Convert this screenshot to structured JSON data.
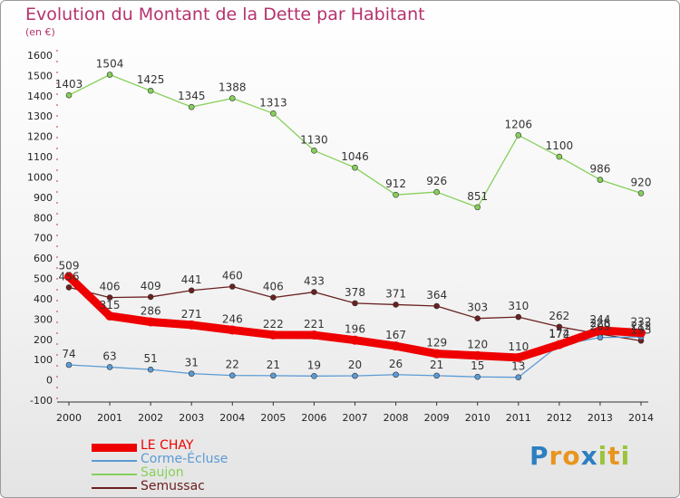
{
  "title": "Evolution du Montant de la Dette par Habitant",
  "subtitle": "(en €)",
  "logo": {
    "text": "Proxiti",
    "letter_colors": [
      "#2c7fc1",
      "#e8951e",
      "#e8951e",
      "#2c7fc1",
      "#9bc43b",
      "#e8951e",
      "#9bc43b"
    ]
  },
  "chart_data": {
    "type": "line",
    "title": "Evolution du Montant de la Dette par Habitant",
    "ylabel": "(en €)",
    "xlabel": "",
    "x": [
      "2000",
      "2001",
      "2002",
      "2003",
      "2004",
      "2005",
      "2006",
      "2007",
      "2008",
      "2009",
      "2010",
      "2011",
      "2012",
      "2013",
      "2014"
    ],
    "ylim": [
      -100,
      1600
    ],
    "yticks": [
      -100,
      0,
      100,
      200,
      300,
      400,
      500,
      600,
      700,
      800,
      900,
      1000,
      1100,
      1200,
      1300,
      1400,
      1500,
      1600
    ],
    "grid": false,
    "legend": "bottom-left",
    "series": [
      {
        "name": "LE CHAY",
        "color": "#ee0000",
        "values": [
          509,
          315,
          286,
          271,
          246,
          222,
          221,
          196,
          167,
          129,
          120,
          110,
          174,
          244,
          232
        ]
      },
      {
        "name": "Corme-Écluse",
        "color": "#5b9bd5",
        "values": [
          74,
          63,
          51,
          31,
          22,
          21,
          19,
          20,
          26,
          21,
          15,
          13,
          172,
          209,
          212
        ]
      },
      {
        "name": "Saujon",
        "color": "#86d05a",
        "values": [
          1403,
          1504,
          1425,
          1345,
          1388,
          1313,
          1130,
          1046,
          912,
          926,
          851,
          1206,
          1100,
          986,
          920
        ]
      },
      {
        "name": "Semussac",
        "color": "#6b2020",
        "values": [
          456,
          406,
          409,
          441,
          460,
          406,
          433,
          378,
          371,
          364,
          303,
          310,
          262,
          226,
          193
        ]
      }
    ]
  }
}
